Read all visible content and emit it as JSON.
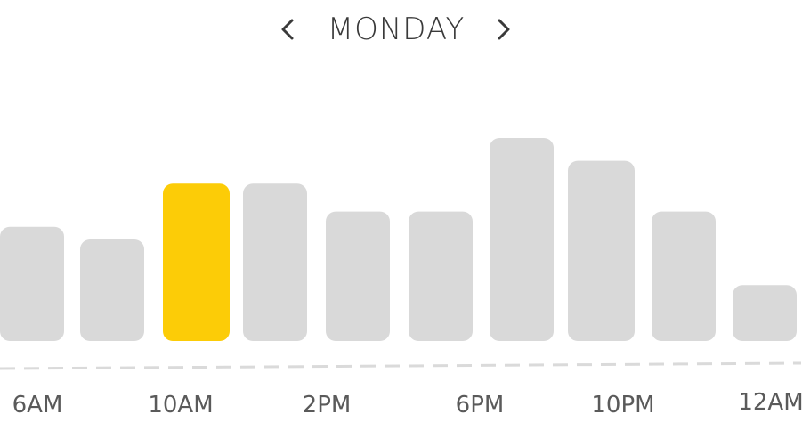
{
  "header": {
    "day": "MONDAY",
    "prev_icon": "chevron-left-icon",
    "next_icon": "chevron-right-icon"
  },
  "colors": {
    "bar": "#d9d9d9",
    "highlight": "#fccc07",
    "baseline": "#dadada",
    "text": "#3a3a3a"
  },
  "chart_data": {
    "type": "bar",
    "title": "MONDAY",
    "highlight_index": 2,
    "values": [
      45,
      40,
      62,
      62,
      51,
      51,
      80,
      71,
      51,
      22
    ],
    "ylim": [
      0,
      100
    ],
    "x_tick_labels": [
      "6AM",
      "10AM",
      "2PM",
      "6PM",
      "10PM",
      "12AM"
    ],
    "grid": false,
    "baseline_style": "dashed"
  }
}
